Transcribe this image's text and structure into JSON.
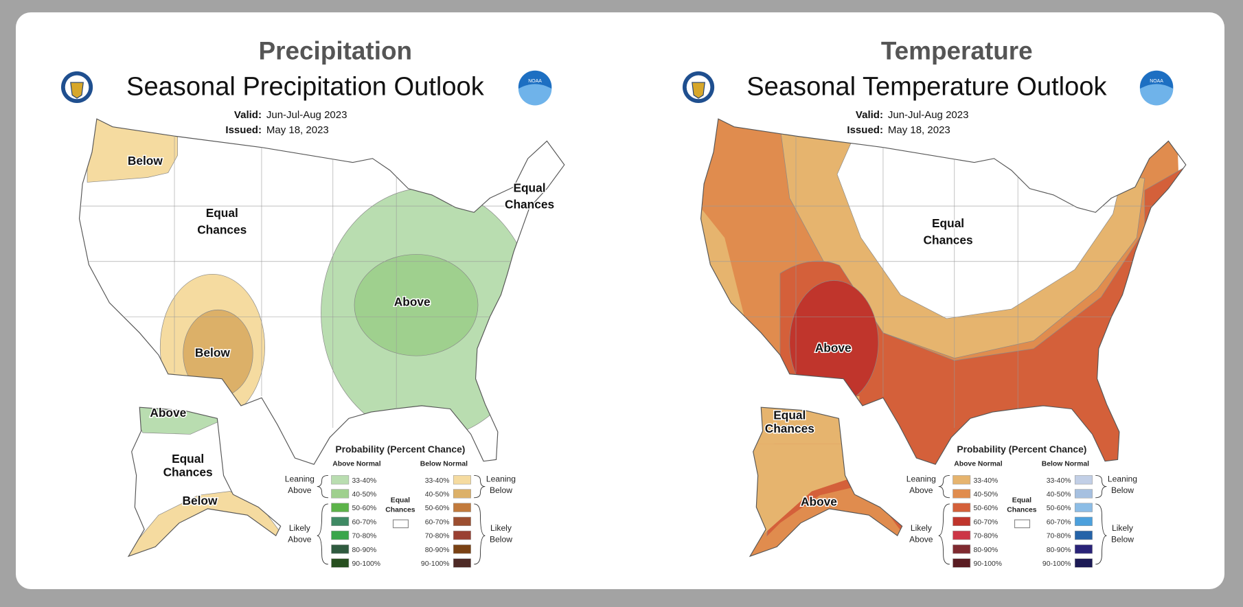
{
  "panels": [
    {
      "heading": "Precipitation",
      "title": "Seasonal Precipitation Outlook",
      "valid_label": "Valid:",
      "valid_value": "Jun-Jul-Aug 2023",
      "issued_label": "Issued:",
      "issued_value": "May 18, 2023",
      "left_logo": "department-of-commerce-seal",
      "right_logo": "noaa-logo",
      "logo_text": "NOAA",
      "map_labels": [
        {
          "text": "Below"
        },
        {
          "text": "Equal"
        },
        {
          "text": "Chances"
        },
        {
          "text": "Above"
        },
        {
          "text": "Below"
        },
        {
          "text": "Equal"
        },
        {
          "text": "Chances"
        },
        {
          "text": "Above"
        },
        {
          "text": "Equal"
        },
        {
          "text": "Chances"
        },
        {
          "text": "Below"
        }
      ],
      "legend": {
        "title": "Probability (Percent Chance)",
        "above_header": "Above Normal",
        "below_header": "Below Normal",
        "equal_line1": "Equal",
        "equal_line2": "Chances",
        "leaning_above": [
          "Leaning",
          "Above"
        ],
        "likely_above": [
          "Likely",
          "Above"
        ],
        "leaning_below": [
          "Leaning",
          "Below"
        ],
        "likely_below": [
          "Likely",
          "Below"
        ],
        "ranges": [
          "33-40%",
          "40-50%",
          "50-60%",
          "60-70%",
          "70-80%",
          "80-90%",
          "90-100%"
        ],
        "above_colors": [
          "#b9ddb0",
          "#9fd08e",
          "#5cb349",
          "#3f8a64",
          "#3aa64a",
          "#2f5a3f",
          "#274f1f"
        ],
        "below_colors": [
          "#f5dba0",
          "#dcb068",
          "#c27a3c",
          "#9c4e30",
          "#9a4032",
          "#7a4214",
          "#4e2a26"
        ]
      }
    },
    {
      "heading": "Temperature",
      "title": "Seasonal Temperature Outlook",
      "valid_label": "Valid:",
      "valid_value": "Jun-Jul-Aug 2023",
      "issued_label": "Issued:",
      "issued_value": "May 18, 2023",
      "left_logo": "department-of-commerce-seal",
      "right_logo": "noaa-logo",
      "logo_text": "NOAA",
      "map_labels": [
        {
          "text": "Equal"
        },
        {
          "text": "Chances"
        },
        {
          "text": "Above"
        },
        {
          "text": "Equal"
        },
        {
          "text": "Chances"
        },
        {
          "text": "Above"
        }
      ],
      "legend": {
        "title": "Probability (Percent Chance)",
        "above_header": "Above Normal",
        "below_header": "Below Normal",
        "equal_line1": "Equal",
        "equal_line2": "Chances",
        "leaning_above": [
          "Leaning",
          "Above"
        ],
        "likely_above": [
          "Likely",
          "Above"
        ],
        "leaning_below": [
          "Leaning",
          "Below"
        ],
        "likely_below": [
          "Likely",
          "Below"
        ],
        "ranges": [
          "33-40%",
          "40-50%",
          "50-60%",
          "60-70%",
          "70-80%",
          "80-90%",
          "90-100%"
        ],
        "above_colors": [
          "#e6b46e",
          "#e08c4e",
          "#d4603a",
          "#c0352c",
          "#cc3546",
          "#7f2a30",
          "#5a1c22"
        ],
        "below_colors": [
          "#c2cfe6",
          "#a6c0e0",
          "#8cbde6",
          "#4ca0dc",
          "#2563a8",
          "#2a2378",
          "#1c1a55"
        ]
      }
    }
  ]
}
